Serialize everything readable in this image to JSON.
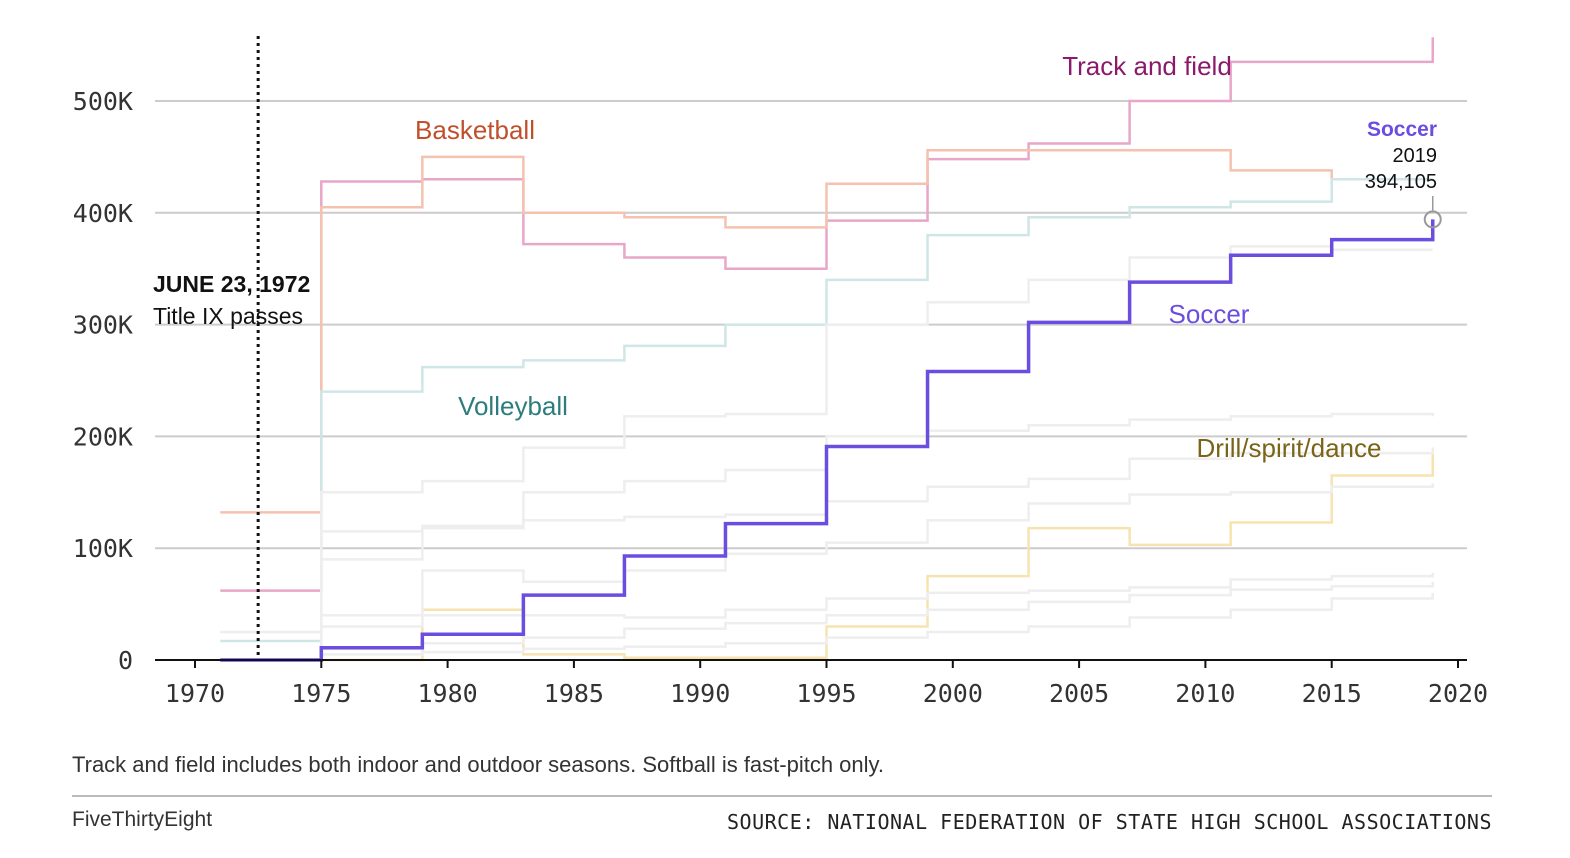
{
  "chart_data": {
    "type": "line",
    "step": true,
    "title": "",
    "xlabel": "",
    "ylabel": "",
    "xlim": [
      1970,
      2020
    ],
    "ylim": [
      0,
      560000
    ],
    "x_ticks": [
      1970,
      1975,
      1980,
      1985,
      1990,
      1995,
      2000,
      2005,
      2010,
      2015,
      2020
    ],
    "x_tick_labels": [
      "1970",
      "1975",
      "1980",
      "1985",
      "1990",
      "1995",
      "2000",
      "2005",
      "2010",
      "2015",
      "2020"
    ],
    "y_ticks": [
      0,
      100000,
      200000,
      300000,
      400000,
      500000
    ],
    "y_tick_labels": [
      "0",
      "100K",
      "200K",
      "300K",
      "400K",
      "500K"
    ],
    "grid": "horizontal",
    "highlight_series": "Soccer",
    "series": [
      {
        "name": "Soccer",
        "color": "#6b4de0",
        "highlight": true,
        "x": [
          1971,
          1975,
          1979,
          1983,
          1987,
          1991,
          1995,
          1999,
          2003,
          2007,
          2011,
          2015,
          2019
        ],
        "y": [
          0,
          11000,
          23000,
          58000,
          93000,
          122000,
          191000,
          258000,
          302000,
          338000,
          362000,
          376000,
          394105
        ]
      },
      {
        "name": "Track and field",
        "color": "#e8a6c8",
        "label_color": "#8b1a6a",
        "x": [
          1971,
          1975,
          1979,
          1983,
          1987,
          1991,
          1995,
          1999,
          2003,
          2007,
          2011,
          2015,
          2019
        ],
        "y": [
          62000,
          428000,
          430000,
          372000,
          360000,
          350000,
          393000,
          448000,
          462000,
          500000,
          535000,
          535000,
          557000
        ]
      },
      {
        "name": "Basketball",
        "color": "#f5c2b0",
        "label_color": "#c0502c",
        "x": [
          1971,
          1975,
          1979,
          1983,
          1987,
          1991,
          1995,
          1999,
          2003,
          2007,
          2011,
          2015,
          2019
        ],
        "y": [
          132000,
          405000,
          450000,
          400000,
          396000,
          387000,
          426000,
          456000,
          456000,
          456000,
          438000,
          430000,
          430000
        ]
      },
      {
        "name": "Volleyball",
        "color": "#cfe6e6",
        "label_color": "#2e7d7d",
        "x": [
          1971,
          1975,
          1979,
          1983,
          1987,
          1991,
          1995,
          1999,
          2003,
          2007,
          2011,
          2015,
          2019
        ],
        "y": [
          17000,
          240000,
          262000,
          268000,
          281000,
          300000,
          340000,
          380000,
          396000,
          405000,
          410000,
          430000,
          430000
        ]
      },
      {
        "name": "Drill/spirit/dance",
        "color": "#f7e3b0",
        "label_color": "#7a6418",
        "x": [
          1971,
          1975,
          1979,
          1983,
          1987,
          1991,
          1995,
          1999,
          2003,
          2007,
          2011,
          2015,
          2019
        ],
        "y": [
          0,
          0,
          45000,
          5000,
          2000,
          2000,
          30000,
          75000,
          118000,
          103000,
          123000,
          165000,
          190000
        ]
      },
      {
        "color": "#eeeeee",
        "x": [
          1971,
          1975,
          1979,
          1983,
          1987,
          1991,
          1995,
          1999,
          2003,
          2007,
          2011,
          2015,
          2019
        ],
        "y": [
          0,
          150000,
          160000,
          190000,
          218000,
          220000,
          300000,
          320000,
          340000,
          360000,
          370000,
          367000,
          367000
        ]
      },
      {
        "color": "#eeeeee",
        "x": [
          1971,
          1975,
          1979,
          1983,
          1987,
          1991,
          1995,
          1999,
          2003,
          2007,
          2011,
          2015,
          2019
        ],
        "y": [
          0,
          90000,
          120000,
          150000,
          160000,
          170000,
          200000,
          205000,
          210000,
          215000,
          218000,
          220000,
          218000
        ]
      },
      {
        "color": "#eeeeee",
        "x": [
          1971,
          1975,
          1979,
          1983,
          1987,
          1991,
          1995,
          1999,
          2003,
          2007,
          2011,
          2015,
          2019
        ],
        "y": [
          0,
          115000,
          118000,
          125000,
          128000,
          130000,
          142000,
          155000,
          162000,
          180000,
          185000,
          185000,
          190000
        ]
      },
      {
        "color": "#eeeeee",
        "x": [
          1971,
          1975,
          1979,
          1983,
          1987,
          1991,
          1995,
          1999,
          2003,
          2007,
          2011,
          2015,
          2019
        ],
        "y": [
          0,
          40000,
          80000,
          70000,
          80000,
          95000,
          105000,
          125000,
          140000,
          148000,
          150000,
          155000,
          158000
        ]
      },
      {
        "color": "#eeeeee",
        "x": [
          1971,
          1975,
          1979,
          1983,
          1987,
          1991,
          1995,
          1999,
          2003,
          2007,
          2011,
          2015,
          2019
        ],
        "y": [
          25000,
          30000,
          40000,
          40000,
          38000,
          45000,
          55000,
          60000,
          62000,
          65000,
          72000,
          75000,
          78000
        ]
      },
      {
        "color": "#eeeeee",
        "x": [
          1971,
          1975,
          1979,
          1983,
          1987,
          1991,
          1995,
          1999,
          2003,
          2007,
          2011,
          2015,
          2019
        ],
        "y": [
          0,
          10000,
          15000,
          20000,
          28000,
          33000,
          40000,
          45000,
          52000,
          58000,
          63000,
          66000,
          70000
        ]
      },
      {
        "color": "#eeeeee",
        "x": [
          1971,
          1975,
          1979,
          1983,
          1987,
          1991,
          1995,
          1999,
          2003,
          2007,
          2011,
          2015,
          2019
        ],
        "y": [
          0,
          5000,
          7000,
          10000,
          12000,
          15000,
          20000,
          25000,
          30000,
          38000,
          45000,
          55000,
          60000
        ]
      }
    ],
    "annotation": {
      "x": 1972.5,
      "date": "JUNE 23, 1972",
      "text": "Title IX passes"
    },
    "callout": {
      "series": "Soccer",
      "year": "2019",
      "value": "394,105",
      "x": 2019,
      "y": 394105
    }
  },
  "note": "Track and field includes both indoor and outdoor seasons. Softball is fast-pitch only.",
  "brand": "FiveThirtyEight",
  "source": "SOURCE: NATIONAL FEDERATION OF STATE HIGH SCHOOL ASSOCIATIONS"
}
